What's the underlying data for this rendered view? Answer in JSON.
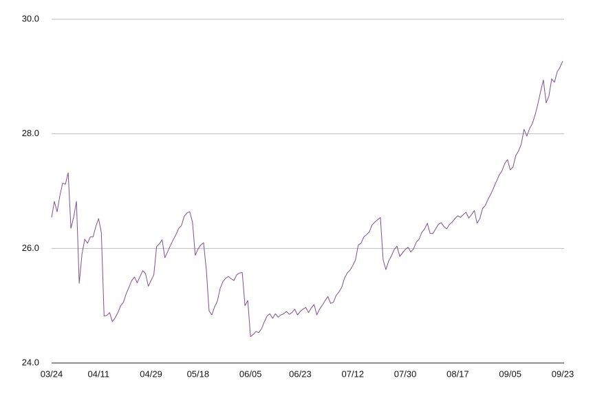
{
  "chart_data": {
    "type": "line",
    "categories": [
      "03/24",
      null,
      null,
      null,
      null,
      null,
      null,
      null,
      null,
      null,
      null,
      null,
      null,
      null,
      null,
      null,
      null,
      "04/11",
      null,
      null,
      null,
      null,
      null,
      null,
      null,
      null,
      null,
      null,
      null,
      null,
      null,
      null,
      null,
      null,
      null,
      null,
      "04/29",
      null,
      null,
      null,
      null,
      null,
      null,
      null,
      null,
      null,
      null,
      null,
      null,
      null,
      null,
      null,
      null,
      "05/18",
      null,
      null,
      null,
      null,
      null,
      null,
      null,
      null,
      null,
      null,
      null,
      null,
      null,
      null,
      null,
      null,
      null,
      null,
      "06/05",
      null,
      null,
      null,
      null,
      null,
      null,
      null,
      null,
      null,
      null,
      null,
      null,
      null,
      null,
      null,
      null,
      null,
      "06/23",
      null,
      null,
      null,
      null,
      null,
      null,
      null,
      null,
      null,
      null,
      null,
      null,
      null,
      null,
      null,
      null,
      null,
      null,
      "07/12",
      null,
      null,
      null,
      null,
      null,
      null,
      null,
      null,
      null,
      null,
      null,
      null,
      null,
      null,
      null,
      null,
      null,
      null,
      "07/30",
      null,
      null,
      null,
      null,
      null,
      null,
      null,
      null,
      null,
      null,
      null,
      null,
      null,
      null,
      null,
      null,
      null,
      null,
      "08/17",
      null,
      null,
      null,
      null,
      null,
      null,
      null,
      null,
      null,
      null,
      null,
      null,
      null,
      null,
      null,
      null,
      null,
      null,
      "09/05",
      null,
      null,
      null,
      null,
      null,
      null,
      null,
      null,
      null,
      null,
      null,
      null,
      null,
      null,
      null,
      null,
      null,
      null,
      "09/23"
    ],
    "values": [
      26.54,
      26.82,
      26.64,
      26.92,
      27.14,
      27.12,
      27.32,
      26.35,
      26.55,
      26.82,
      25.39,
      25.9,
      26.16,
      26.09,
      26.2,
      26.2,
      26.38,
      26.52,
      26.28,
      24.82,
      24.83,
      24.88,
      24.72,
      24.79,
      24.88,
      25.0,
      25.06,
      25.21,
      25.32,
      25.44,
      25.5,
      25.4,
      25.51,
      25.61,
      25.56,
      25.34,
      25.44,
      25.54,
      26.03,
      26.08,
      26.15,
      25.84,
      25.94,
      26.05,
      26.15,
      26.24,
      26.35,
      26.4,
      26.56,
      26.62,
      26.64,
      26.46,
      25.88,
      25.99,
      26.06,
      26.1,
      25.63,
      24.91,
      24.84,
      24.98,
      25.08,
      25.3,
      25.42,
      25.48,
      25.51,
      25.47,
      25.44,
      25.54,
      25.57,
      25.58,
      25.0,
      25.09,
      24.46,
      24.5,
      24.55,
      24.53,
      24.6,
      24.72,
      24.82,
      24.86,
      24.78,
      24.86,
      24.8,
      24.84,
      24.86,
      24.9,
      24.85,
      24.88,
      24.94,
      24.84,
      24.9,
      24.94,
      24.97,
      24.88,
      24.96,
      25.02,
      24.84,
      24.94,
      25.01,
      25.09,
      25.16,
      25.04,
      25.06,
      25.18,
      25.24,
      25.32,
      25.48,
      25.57,
      25.62,
      25.7,
      25.8,
      26.06,
      26.09,
      26.2,
      26.24,
      26.29,
      26.41,
      26.46,
      26.5,
      26.54,
      25.8,
      25.63,
      25.78,
      25.87,
      25.98,
      26.04,
      25.86,
      25.92,
      25.98,
      26.02,
      25.94,
      25.99,
      26.11,
      26.16,
      26.28,
      26.34,
      26.44,
      26.26,
      26.26,
      26.34,
      26.42,
      26.45,
      26.38,
      26.34,
      26.42,
      26.46,
      26.52,
      26.57,
      26.54,
      26.59,
      26.63,
      26.53,
      26.59,
      26.66,
      26.44,
      26.52,
      26.7,
      26.75,
      26.86,
      26.95,
      27.06,
      27.17,
      27.28,
      27.35,
      27.48,
      27.55,
      27.37,
      27.42,
      27.62,
      27.7,
      27.82,
      28.08,
      27.96,
      28.09,
      28.18,
      28.33,
      28.52,
      28.74,
      28.94,
      28.54,
      28.66,
      28.96,
      28.9,
      29.08,
      29.16,
      29.27
    ],
    "color": "#7e4f8e",
    "ylim": [
      24,
      30
    ],
    "yticks": [
      {
        "value": 24,
        "label": "24.0"
      },
      {
        "value": 26,
        "label": "26.0"
      },
      {
        "value": 28,
        "label": "28.0"
      },
      {
        "value": 30,
        "label": "30.0"
      }
    ],
    "grid": true
  }
}
